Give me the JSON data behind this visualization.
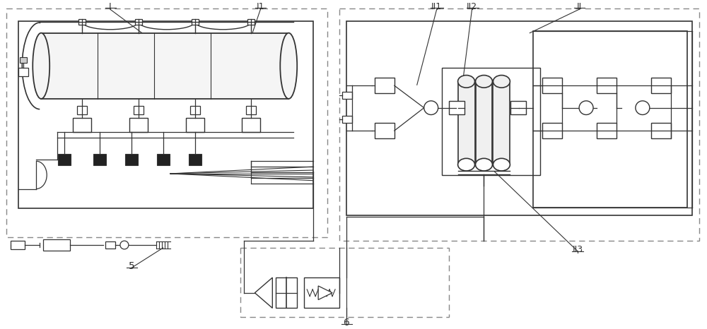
{
  "bg_color": "#ffffff",
  "lc": "#333333",
  "lc_gray": "#888888",
  "fig_width": 10.0,
  "fig_height": 4.66,
  "labels": {
    "I": "I",
    "I1": "I1",
    "II": "II",
    "II1": "II1",
    "II2": "II2",
    "II3": "II3",
    "5": "5",
    "6": "6"
  }
}
